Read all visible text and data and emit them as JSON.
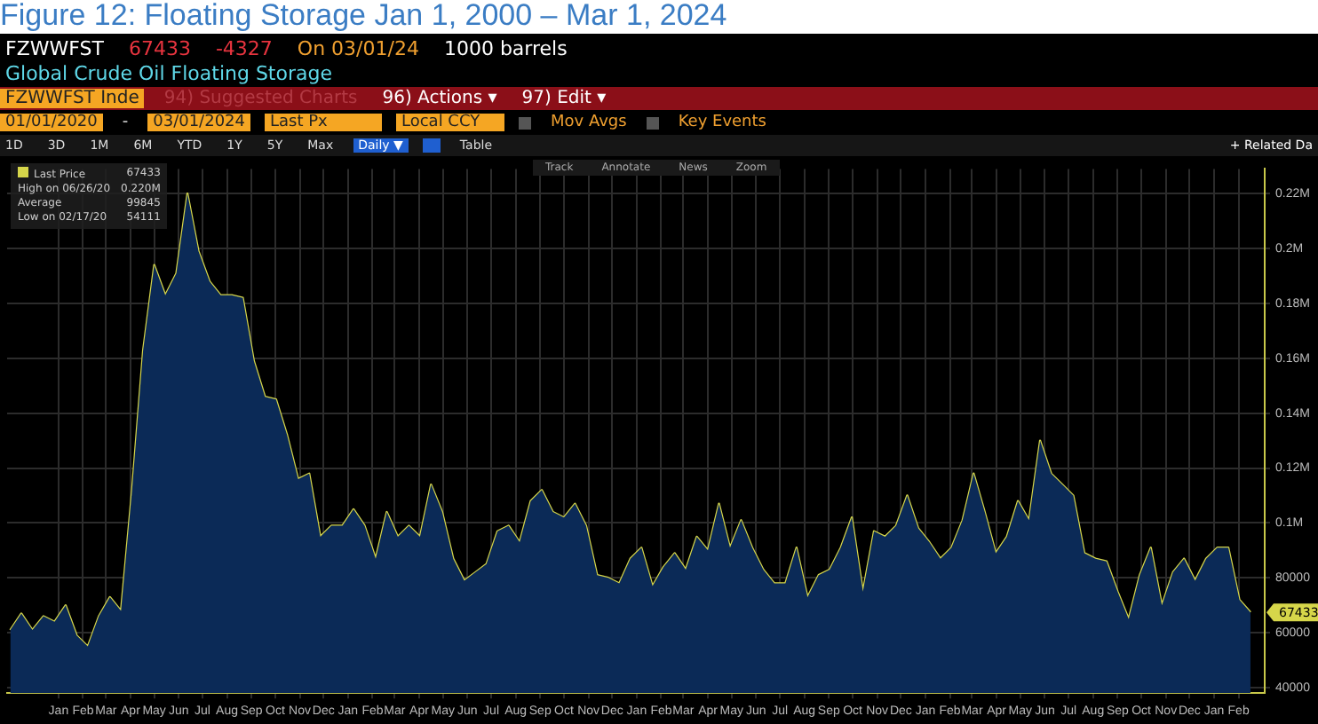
{
  "chart_data": {
    "type": "area",
    "title": "Figure 12: Floating Storage Jan 1, 2000 – Mar 1, 2024",
    "x": [
      "2019-11-15",
      "2019-11-29",
      "2019-12-13",
      "2019-12-27",
      "2020-01-10",
      "2020-01-24",
      "2020-02-07",
      "2020-02-21",
      "2020-03-06",
      "2020-03-20",
      "2020-04-03",
      "2020-04-17",
      "2020-05-01",
      "2020-05-15",
      "2020-05-29",
      "2020-06-12",
      "2020-06-26",
      "2020-07-10",
      "2020-07-24",
      "2020-08-07",
      "2020-08-21",
      "2020-09-04",
      "2020-09-18",
      "2020-10-02",
      "2020-10-16",
      "2020-10-30",
      "2020-11-13",
      "2020-11-27",
      "2020-12-11",
      "2020-12-25",
      "2021-01-08",
      "2021-01-22",
      "2021-02-05",
      "2021-02-19",
      "2021-03-05",
      "2021-03-19",
      "2021-04-02",
      "2021-04-16",
      "2021-04-30",
      "2021-05-14",
      "2021-05-28",
      "2021-06-11",
      "2021-06-25",
      "2021-07-09",
      "2021-07-23",
      "2021-08-06",
      "2021-08-20",
      "2021-09-03",
      "2021-09-17",
      "2021-10-01",
      "2021-10-15",
      "2021-10-29",
      "2021-11-12",
      "2021-11-26",
      "2021-12-10",
      "2021-12-24",
      "2022-01-07",
      "2022-01-21",
      "2022-02-04",
      "2022-02-18",
      "2022-03-04",
      "2022-03-18",
      "2022-04-01",
      "2022-04-15",
      "2022-04-29",
      "2022-05-13",
      "2022-05-27",
      "2022-06-10",
      "2022-06-24",
      "2022-07-08",
      "2022-07-22",
      "2022-08-05",
      "2022-08-19",
      "2022-09-02",
      "2022-09-16",
      "2022-09-30",
      "2022-10-14",
      "2022-10-28",
      "2022-11-11",
      "2022-11-25",
      "2022-12-09",
      "2022-12-23",
      "2023-01-06",
      "2023-01-20",
      "2023-02-03",
      "2023-02-17",
      "2023-03-03",
      "2023-03-17",
      "2023-03-31",
      "2023-04-14",
      "2023-04-28",
      "2023-05-12",
      "2023-05-26",
      "2023-06-09",
      "2023-06-23",
      "2023-07-07",
      "2023-07-21",
      "2023-08-04",
      "2023-08-18",
      "2023-09-01",
      "2023-09-15",
      "2023-09-29",
      "2023-10-13",
      "2023-10-27",
      "2023-11-10",
      "2023-11-24",
      "2023-12-08",
      "2023-12-22",
      "2024-01-05",
      "2024-01-19",
      "2024-02-02",
      "2024-02-16",
      "2024-03-01"
    ],
    "series": [
      {
        "color": "#0b2a57",
        "values": [
          61000,
          67000,
          61000,
          66000,
          64000,
          70000,
          59000,
          55000,
          66000,
          73000,
          68000,
          112000,
          163000,
          194000,
          183000,
          191000,
          220000,
          199000,
          188000,
          183000,
          183000,
          182000,
          159000,
          146000,
          145000,
          132000,
          116000,
          118000,
          95000,
          99000,
          99000,
          105000,
          99000,
          87000,
          104000,
          95000,
          99000,
          95000,
          114000,
          104000,
          87000,
          79000,
          82000,
          85000,
          97000,
          99000,
          93000,
          108000,
          112000,
          104000,
          102000,
          107000,
          99000,
          81000,
          80000,
          78000,
          87000,
          91000,
          77000,
          84000,
          89000,
          83000,
          95000,
          90000,
          107000,
          91000,
          101000,
          91000,
          83000,
          78000,
          78000,
          91000,
          73000,
          81000,
          83000,
          91000,
          102000,
          75000,
          97000,
          95000,
          99000,
          110000,
          98000,
          93000,
          87000,
          91000,
          101000,
          118000,
          104000,
          89000,
          95000,
          108000,
          101000,
          130000,
          118000,
          114000,
          110000,
          89000,
          87000,
          86000,
          75000,
          65000,
          81000,
          91000,
          70000,
          82000,
          87000,
          79000,
          87000,
          91000,
          91000,
          72000,
          67433
        ]
      },
      {
        "type": "line",
        "name": "Last Price",
        "color": "#d6d64a",
        "values": [
          61000,
          67000,
          61000,
          66000,
          64000,
          70000,
          59000,
          55000,
          66000,
          73000,
          68000,
          112000,
          163000,
          194000,
          183000,
          191000,
          220000,
          199000,
          188000,
          183000,
          183000,
          182000,
          159000,
          146000,
          145000,
          132000,
          116000,
          118000,
          95000,
          99000,
          99000,
          105000,
          99000,
          87000,
          104000,
          95000,
          99000,
          95000,
          114000,
          104000,
          87000,
          79000,
          82000,
          85000,
          97000,
          99000,
          93000,
          108000,
          112000,
          104000,
          102000,
          107000,
          99000,
          81000,
          80000,
          78000,
          87000,
          91000,
          77000,
          84000,
          89000,
          83000,
          95000,
          90000,
          107000,
          91000,
          101000,
          91000,
          83000,
          78000,
          78000,
          91000,
          73000,
          81000,
          83000,
          91000,
          102000,
          75000,
          97000,
          95000,
          99000,
          110000,
          98000,
          93000,
          87000,
          91000,
          101000,
          118000,
          104000,
          89000,
          95000,
          108000,
          101000,
          130000,
          118000,
          114000,
          110000,
          89000,
          87000,
          86000,
          75000,
          65000,
          81000,
          91000,
          70000,
          82000,
          87000,
          79000,
          87000,
          91000,
          91000,
          72000,
          67433
        ]
      }
    ],
    "xlim": [
      "2019-11-11",
      "2024-03-19"
    ],
    "xticks": [
      {
        "value": "2020-01-15",
        "label": "Jan"
      },
      {
        "value": "2020-02-15",
        "label": "Feb"
      },
      {
        "value": "2020-03-15",
        "label": "Mar"
      },
      {
        "value": "2020-04-15",
        "label": "Apr"
      },
      {
        "value": "2020-05-15",
        "label": "May"
      },
      {
        "value": "2020-06-15",
        "label": "Jun"
      },
      {
        "value": "2020-07-15",
        "label": "Jul"
      },
      {
        "value": "2020-08-15",
        "label": "Aug"
      },
      {
        "value": "2020-09-15",
        "label": "Sep"
      },
      {
        "value": "2020-10-15",
        "label": "Oct"
      },
      {
        "value": "2020-11-15",
        "label": "Nov"
      },
      {
        "value": "2020-12-15",
        "label": "Dec"
      },
      {
        "value": "2021-01-15",
        "label": "Jan"
      },
      {
        "value": "2021-02-15",
        "label": "Feb"
      },
      {
        "value": "2021-03-15",
        "label": "Mar"
      },
      {
        "value": "2021-04-15",
        "label": "Apr"
      },
      {
        "value": "2021-05-15",
        "label": "May"
      },
      {
        "value": "2021-06-15",
        "label": "Jun"
      },
      {
        "value": "2021-07-15",
        "label": "Jul"
      },
      {
        "value": "2021-08-15",
        "label": "Aug"
      },
      {
        "value": "2021-09-15",
        "label": "Sep"
      },
      {
        "value": "2021-10-15",
        "label": "Oct"
      },
      {
        "value": "2021-11-15",
        "label": "Nov"
      },
      {
        "value": "2021-12-15",
        "label": "Dec"
      },
      {
        "value": "2022-01-15",
        "label": "Jan"
      },
      {
        "value": "2022-02-15",
        "label": "Feb"
      },
      {
        "value": "2022-03-15",
        "label": "Mar"
      },
      {
        "value": "2022-04-15",
        "label": "Apr"
      },
      {
        "value": "2022-05-15",
        "label": "May"
      },
      {
        "value": "2022-06-15",
        "label": "Jun"
      },
      {
        "value": "2022-07-15",
        "label": "Jul"
      },
      {
        "value": "2022-08-15",
        "label": "Aug"
      },
      {
        "value": "2022-09-15",
        "label": "Sep"
      },
      {
        "value": "2022-10-15",
        "label": "Oct"
      },
      {
        "value": "2022-11-15",
        "label": "Nov"
      },
      {
        "value": "2022-12-15",
        "label": "Dec"
      },
      {
        "value": "2023-01-15",
        "label": "Jan"
      },
      {
        "value": "2023-02-15",
        "label": "Feb"
      },
      {
        "value": "2023-03-15",
        "label": "Mar"
      },
      {
        "value": "2023-04-15",
        "label": "Apr"
      },
      {
        "value": "2023-05-15",
        "label": "May"
      },
      {
        "value": "2023-06-15",
        "label": "Jun"
      },
      {
        "value": "2023-07-15",
        "label": "Jul"
      },
      {
        "value": "2023-08-15",
        "label": "Aug"
      },
      {
        "value": "2023-09-15",
        "label": "Sep"
      },
      {
        "value": "2023-10-15",
        "label": "Oct"
      },
      {
        "value": "2023-11-15",
        "label": "Nov"
      },
      {
        "value": "2023-12-15",
        "label": "Dec"
      },
      {
        "value": "2024-01-15",
        "label": "Jan"
      },
      {
        "value": "2024-02-15",
        "label": "Feb"
      }
    ],
    "ylim": [
      38000,
      229000
    ],
    "yticks": [
      40000,
      60000,
      80000,
      {
        "value": 100000,
        "label": "0.1M"
      },
      {
        "value": 120000,
        "label": "0.12M"
      },
      {
        "value": 140000,
        "label": "0.14M"
      },
      {
        "value": 160000,
        "label": "0.16M"
      },
      {
        "value": 180000,
        "label": "0.18M"
      },
      {
        "value": 200000,
        "label": "0.2M"
      },
      {
        "value": 220000,
        "label": "0.22M"
      }
    ],
    "grid": true,
    "legend": "top left",
    "annotations": [
      "FZWWFST",
      "67433",
      "-4327",
      "On 03/01/24",
      "1000 barrels",
      "Global Crude Oil Floating Storage",
      "FZWWFST Inde",
      "94) Suggested Charts",
      "96) Actions ▾",
      "97) Edit ▾",
      "01/01/2020",
      "-",
      "03/01/2024",
      "Last Px",
      "Local CCY",
      "Mov Avgs",
      "Key Events",
      "1D",
      "3D",
      "1M",
      "6M",
      "YTD",
      "1Y",
      "5Y",
      "Max",
      "Daily ▼",
      "Table",
      "+ Related Da",
      "Track",
      "Annotate",
      "News",
      "Zoom",
      "67433",
      "High on 06/26/20",
      "0.220M",
      "Average",
      "99845",
      "Low on 02/17/20",
      "54111",
      {
        "text": "67433",
        "x": "2024-03-01",
        "y": 67433
      }
    ]
  }
}
